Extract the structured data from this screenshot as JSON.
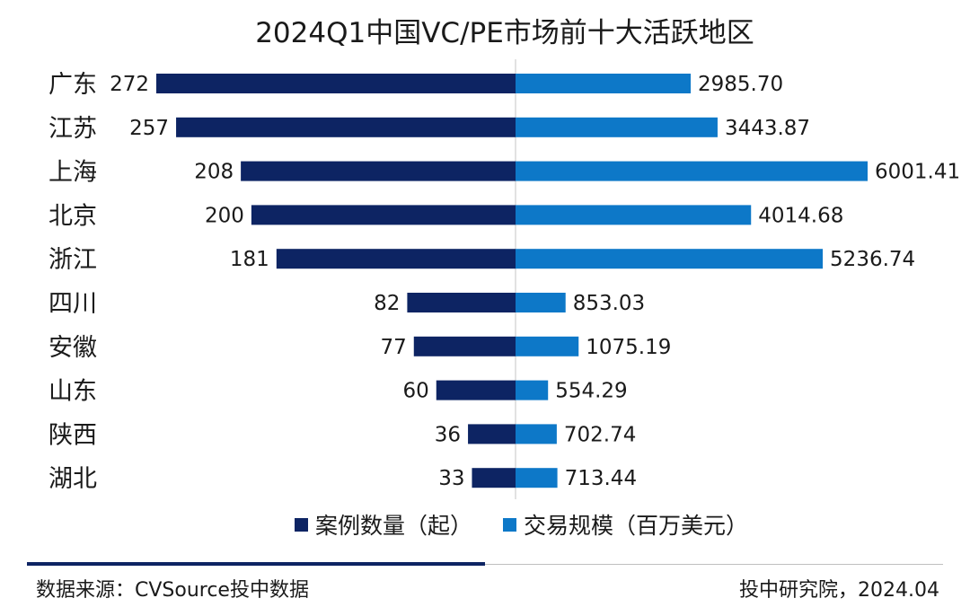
{
  "chart_data": {
    "type": "bar",
    "orientation": "horizontal-diverging",
    "title": "2024Q1中国VC/PE市场前十大活跃地区",
    "categories": [
      "广东",
      "江苏",
      "上海",
      "北京",
      "浙江",
      "四川",
      "安徽",
      "山东",
      "陕西",
      "湖北"
    ],
    "series": [
      {
        "name": "案例数量（起）",
        "values": [
          272,
          257,
          208,
          200,
          181,
          82,
          77,
          60,
          36,
          33
        ],
        "color": "#0d2463",
        "side": "left"
      },
      {
        "name": "交易规模（百万美元）",
        "values": [
          2985.7,
          3443.87,
          6001.41,
          4014.68,
          5236.74,
          853.03,
          1075.19,
          554.29,
          702.74,
          713.44
        ],
        "color": "#0d78c8",
        "side": "right"
      }
    ],
    "legend_position": "bottom-center",
    "grid": false
  },
  "footer": {
    "source": "数据来源：CVSource投中数据",
    "credit": "投中研究院，2024.04",
    "accent": "#0d2463"
  }
}
